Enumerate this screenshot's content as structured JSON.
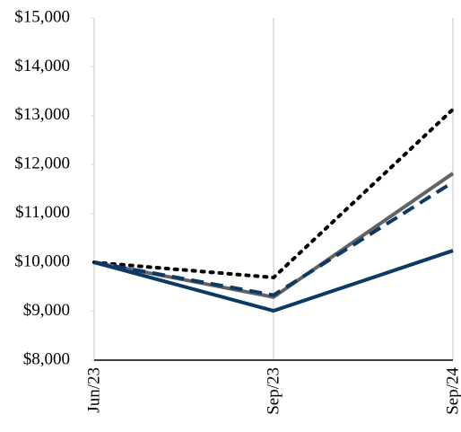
{
  "chart_data": {
    "type": "line",
    "categories": [
      "Jun/23",
      "Sep/23",
      "Sep/24"
    ],
    "series": [
      {
        "color": "#000000",
        "style": "dotted",
        "values": [
          10000,
          9690,
          13130
        ]
      },
      {
        "color": "#636363",
        "style": "solid",
        "values": [
          10000,
          9290,
          11820
        ]
      },
      {
        "color": "#0b3a66",
        "style": "dashed",
        "values": [
          10000,
          9330,
          11640
        ]
      },
      {
        "color": "#0b3a66",
        "style": "solid",
        "values": [
          10000,
          9010,
          10240
        ]
      }
    ],
    "ylim": [
      8000,
      15000
    ],
    "yticks": [
      {
        "value": 8000,
        "label": "$8,000"
      },
      {
        "value": 9000,
        "label": "$9,000"
      },
      {
        "value": 10000,
        "label": "$10,000"
      },
      {
        "value": 11000,
        "label": "$11,000"
      },
      {
        "value": 12000,
        "label": "$12,000"
      },
      {
        "value": 13000,
        "label": "$13,000"
      },
      {
        "value": 14000,
        "label": "$14,000"
      },
      {
        "value": 15000,
        "label": "$15,000"
      }
    ],
    "grid": true
  }
}
